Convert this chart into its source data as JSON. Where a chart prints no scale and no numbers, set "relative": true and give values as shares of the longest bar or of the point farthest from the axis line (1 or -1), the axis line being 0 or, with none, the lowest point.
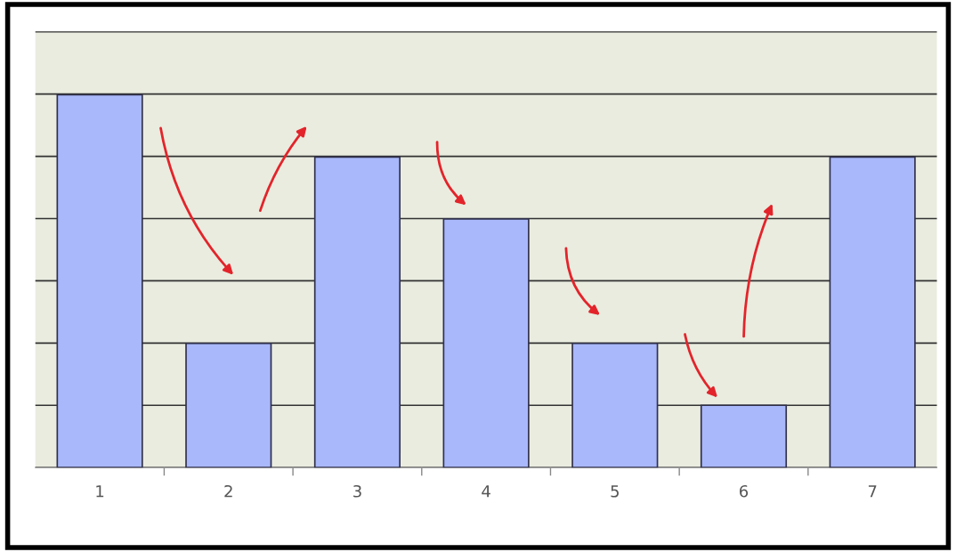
{
  "chart_data": {
    "type": "bar",
    "relative": true,
    "categories": [
      "1",
      "2",
      "3",
      "4",
      "5",
      "6",
      "7"
    ],
    "values": [
      1,
      0.333,
      0.833,
      0.667,
      0.333,
      0.167,
      0.833
    ],
    "color": "#a9b8fb",
    "grid": "y"
  }
}
